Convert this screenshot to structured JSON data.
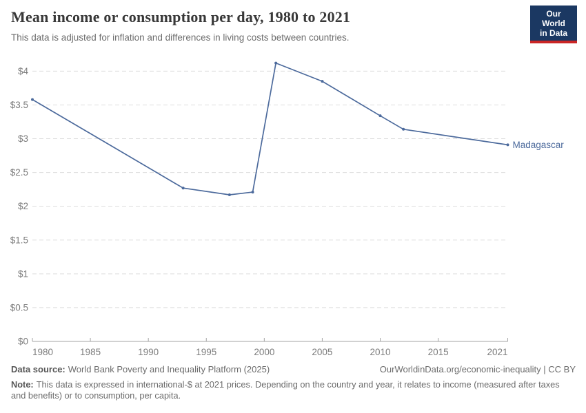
{
  "header": {
    "title": "Mean income or consumption per day, 1980 to 2021",
    "subtitle": "This data is adjusted for inflation and differences in living costs between countries.",
    "logo": {
      "line1": "Our World",
      "line2": "in Data",
      "bg_color": "#1b3862",
      "accent_color": "#cb2626"
    }
  },
  "chart_data": {
    "type": "line",
    "title": "Mean income or consumption per day, 1980 to 2021",
    "xlabel": "",
    "ylabel": "",
    "xlim": [
      1980,
      2021
    ],
    "ylim": [
      0,
      4
    ],
    "grid": "horizontal-dashed",
    "legend_position": "end-of-line-label",
    "x_ticks": [
      {
        "value": 1980,
        "label": "1980"
      },
      {
        "value": 1985,
        "label": "1985"
      },
      {
        "value": 1990,
        "label": "1990"
      },
      {
        "value": 1995,
        "label": "1995"
      },
      {
        "value": 2000,
        "label": "2000"
      },
      {
        "value": 2005,
        "label": "2005"
      },
      {
        "value": 2010,
        "label": "2010"
      },
      {
        "value": 2015,
        "label": "2015"
      },
      {
        "value": 2021,
        "label": "2021"
      }
    ],
    "y_ticks": [
      {
        "value": 0,
        "label": "$0"
      },
      {
        "value": 0.5,
        "label": "$0.5"
      },
      {
        "value": 1,
        "label": "$1"
      },
      {
        "value": 1.5,
        "label": "$1.5"
      },
      {
        "value": 2,
        "label": "$2"
      },
      {
        "value": 2.5,
        "label": "$2.5"
      },
      {
        "value": 3,
        "label": "$3"
      },
      {
        "value": 3.5,
        "label": "$3.5"
      },
      {
        "value": 4,
        "label": "$4"
      }
    ],
    "series": [
      {
        "name": "Madagascar",
        "color": "#4c6a9c",
        "x": [
          1980,
          1993,
          1997,
          1999,
          2001,
          2005,
          2010,
          2012,
          2021
        ],
        "values": [
          3.58,
          2.27,
          2.17,
          2.21,
          4.12,
          3.85,
          3.34,
          3.14,
          2.91
        ]
      }
    ]
  },
  "footer": {
    "datasource_label": "Data source:",
    "datasource_value": "World Bank Poverty and Inequality Platform (2025)",
    "attribution": "OurWorldinData.org/economic-inequality | CC BY",
    "note_label": "Note:",
    "note_value": "This data is expressed in international-$ at 2021 prices. Depending on the country and year, it relates to income (measured after taxes and benefits) or to consumption, per capita."
  }
}
